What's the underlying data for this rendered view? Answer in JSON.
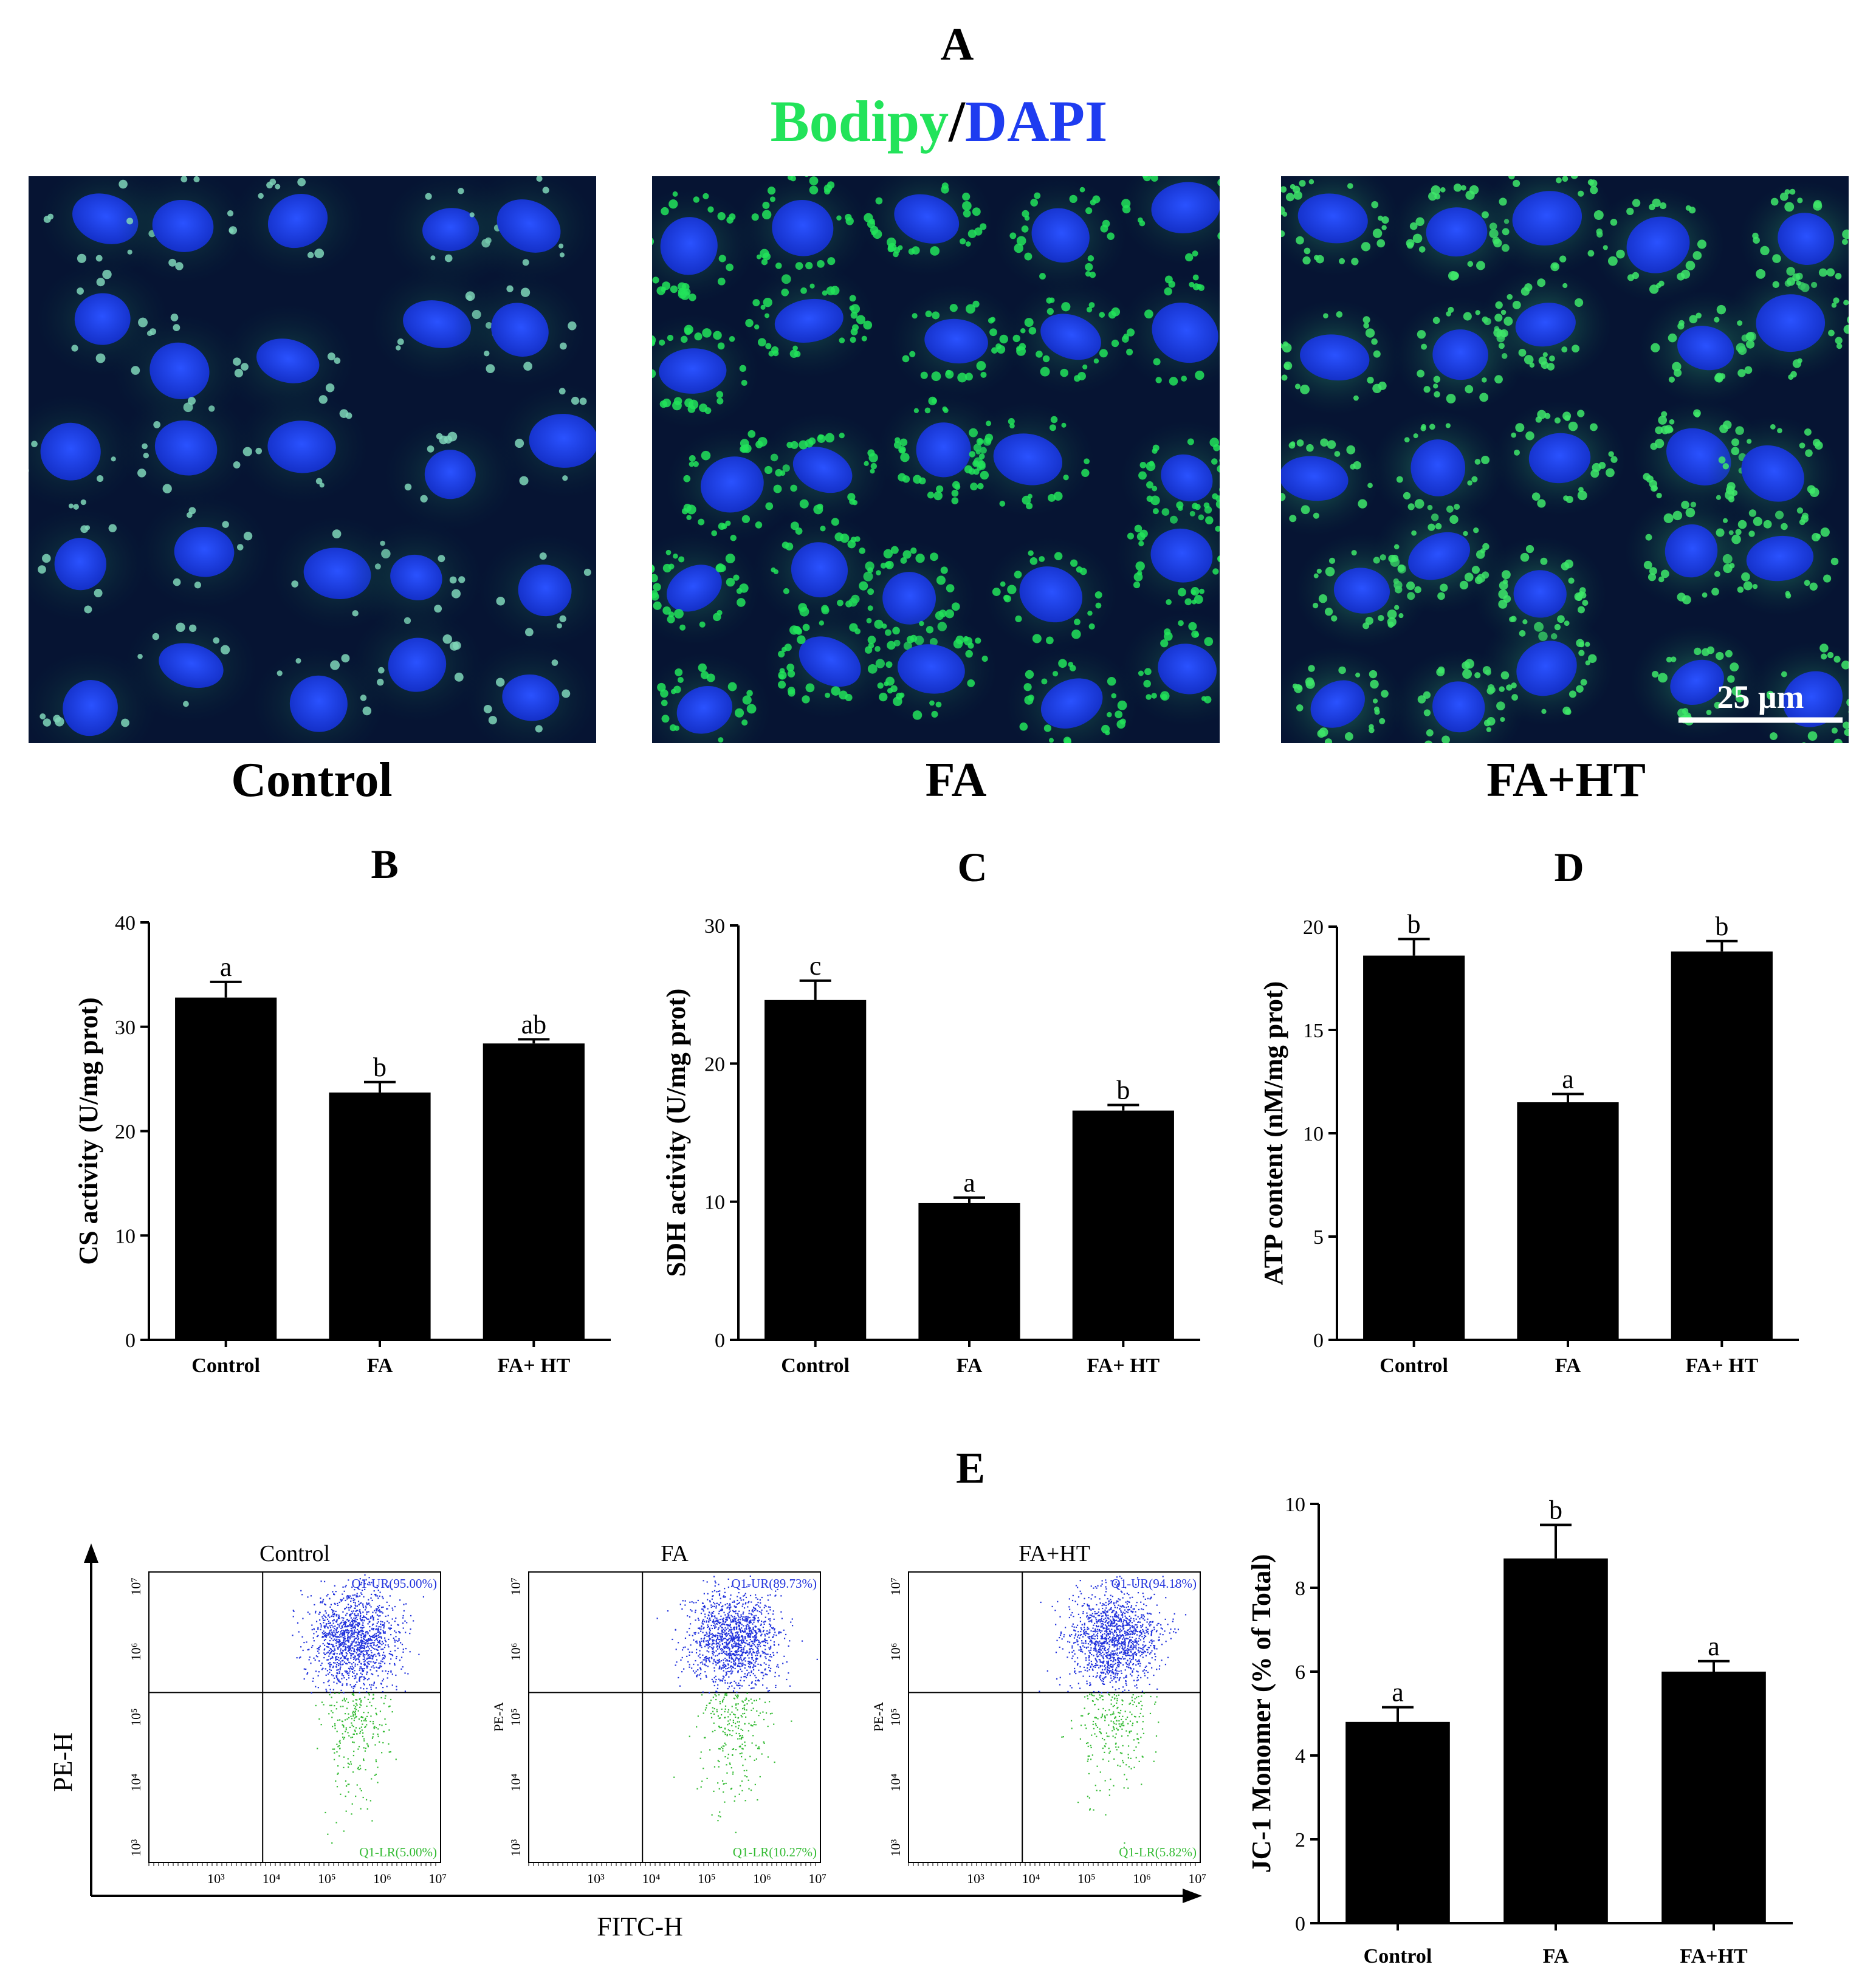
{
  "panel_a": {
    "letter": "A",
    "stain_green": "Bodipy",
    "stain_sep": "/",
    "stain_blue": "DAPI",
    "colors": {
      "green": "#22e35a",
      "blue": "#1e3cf0"
    },
    "images": [
      {
        "label": "Control"
      },
      {
        "label": "FA"
      },
      {
        "label": "FA+HT",
        "scale_bar": "25 μm"
      }
    ]
  },
  "chart_data": [
    {
      "panel": "B",
      "type": "bar",
      "categories": [
        "Control",
        "FA",
        "FA+ HT"
      ],
      "values": [
        32.8,
        23.7,
        28.4
      ],
      "errors": [
        1.5,
        1.0,
        0.4
      ],
      "letters": [
        "a",
        "b",
        "ab"
      ],
      "ylabel": "CS activity (U/mg prot)",
      "ylim": [
        0,
        40
      ],
      "yticks": [
        0,
        10,
        20,
        30,
        40
      ]
    },
    {
      "panel": "C",
      "type": "bar",
      "categories": [
        "Control",
        "FA",
        "FA+ HT"
      ],
      "values": [
        24.6,
        9.9,
        16.6
      ],
      "errors": [
        1.4,
        0.4,
        0.4
      ],
      "letters": [
        "c",
        "a",
        "b"
      ],
      "ylabel": "SDH activity (U/mg prot)",
      "ylim": [
        0,
        30
      ],
      "yticks": [
        0,
        10,
        20,
        30
      ]
    },
    {
      "panel": "D",
      "type": "bar",
      "categories": [
        "Control",
        "FA",
        "FA+ HT"
      ],
      "values": [
        18.6,
        11.5,
        18.8
      ],
      "errors": [
        0.8,
        0.4,
        0.5
      ],
      "letters": [
        "b",
        "a",
        "b"
      ],
      "ylabel": "ATP content (nM/mg prot)",
      "ylim": [
        0,
        20
      ],
      "yticks": [
        0,
        5,
        10,
        15,
        20
      ]
    },
    {
      "panel": "E",
      "type": "bar",
      "categories": [
        "Control",
        "FA",
        "FA+HT"
      ],
      "values": [
        4.8,
        8.7,
        6.0
      ],
      "errors": [
        0.35,
        0.8,
        0.25
      ],
      "letters": [
        "a",
        "b",
        "a"
      ],
      "ylabel": "JC-1 Monomer (% of Total)",
      "ylim": [
        0,
        10
      ],
      "yticks": [
        0,
        2,
        4,
        6,
        8,
        10
      ]
    }
  ],
  "flow": {
    "letter": "E",
    "x_axis_label": "FITC-H",
    "y_axis_label": "PE-H",
    "tick_labels": [
      "10³",
      "10⁴",
      "10⁵",
      "10⁶",
      "10⁷"
    ],
    "upper_color": "#2233dd",
    "lower_color": "#33bb33",
    "plots": [
      {
        "title": "Control",
        "ur": "Q1-UR(95.00%)",
        "lr": "Q1-LR(5.00%)",
        "side_label": ""
      },
      {
        "title": "FA",
        "ur": "Q1-UR(89.73%)",
        "lr": "Q1-LR(10.27%)",
        "side_label": "PE-A"
      },
      {
        "title": "FA+HT",
        "ur": "Q1-UR(94.18%)",
        "lr": "Q1-LR(5.82%)",
        "side_label": "PE-A"
      }
    ]
  }
}
